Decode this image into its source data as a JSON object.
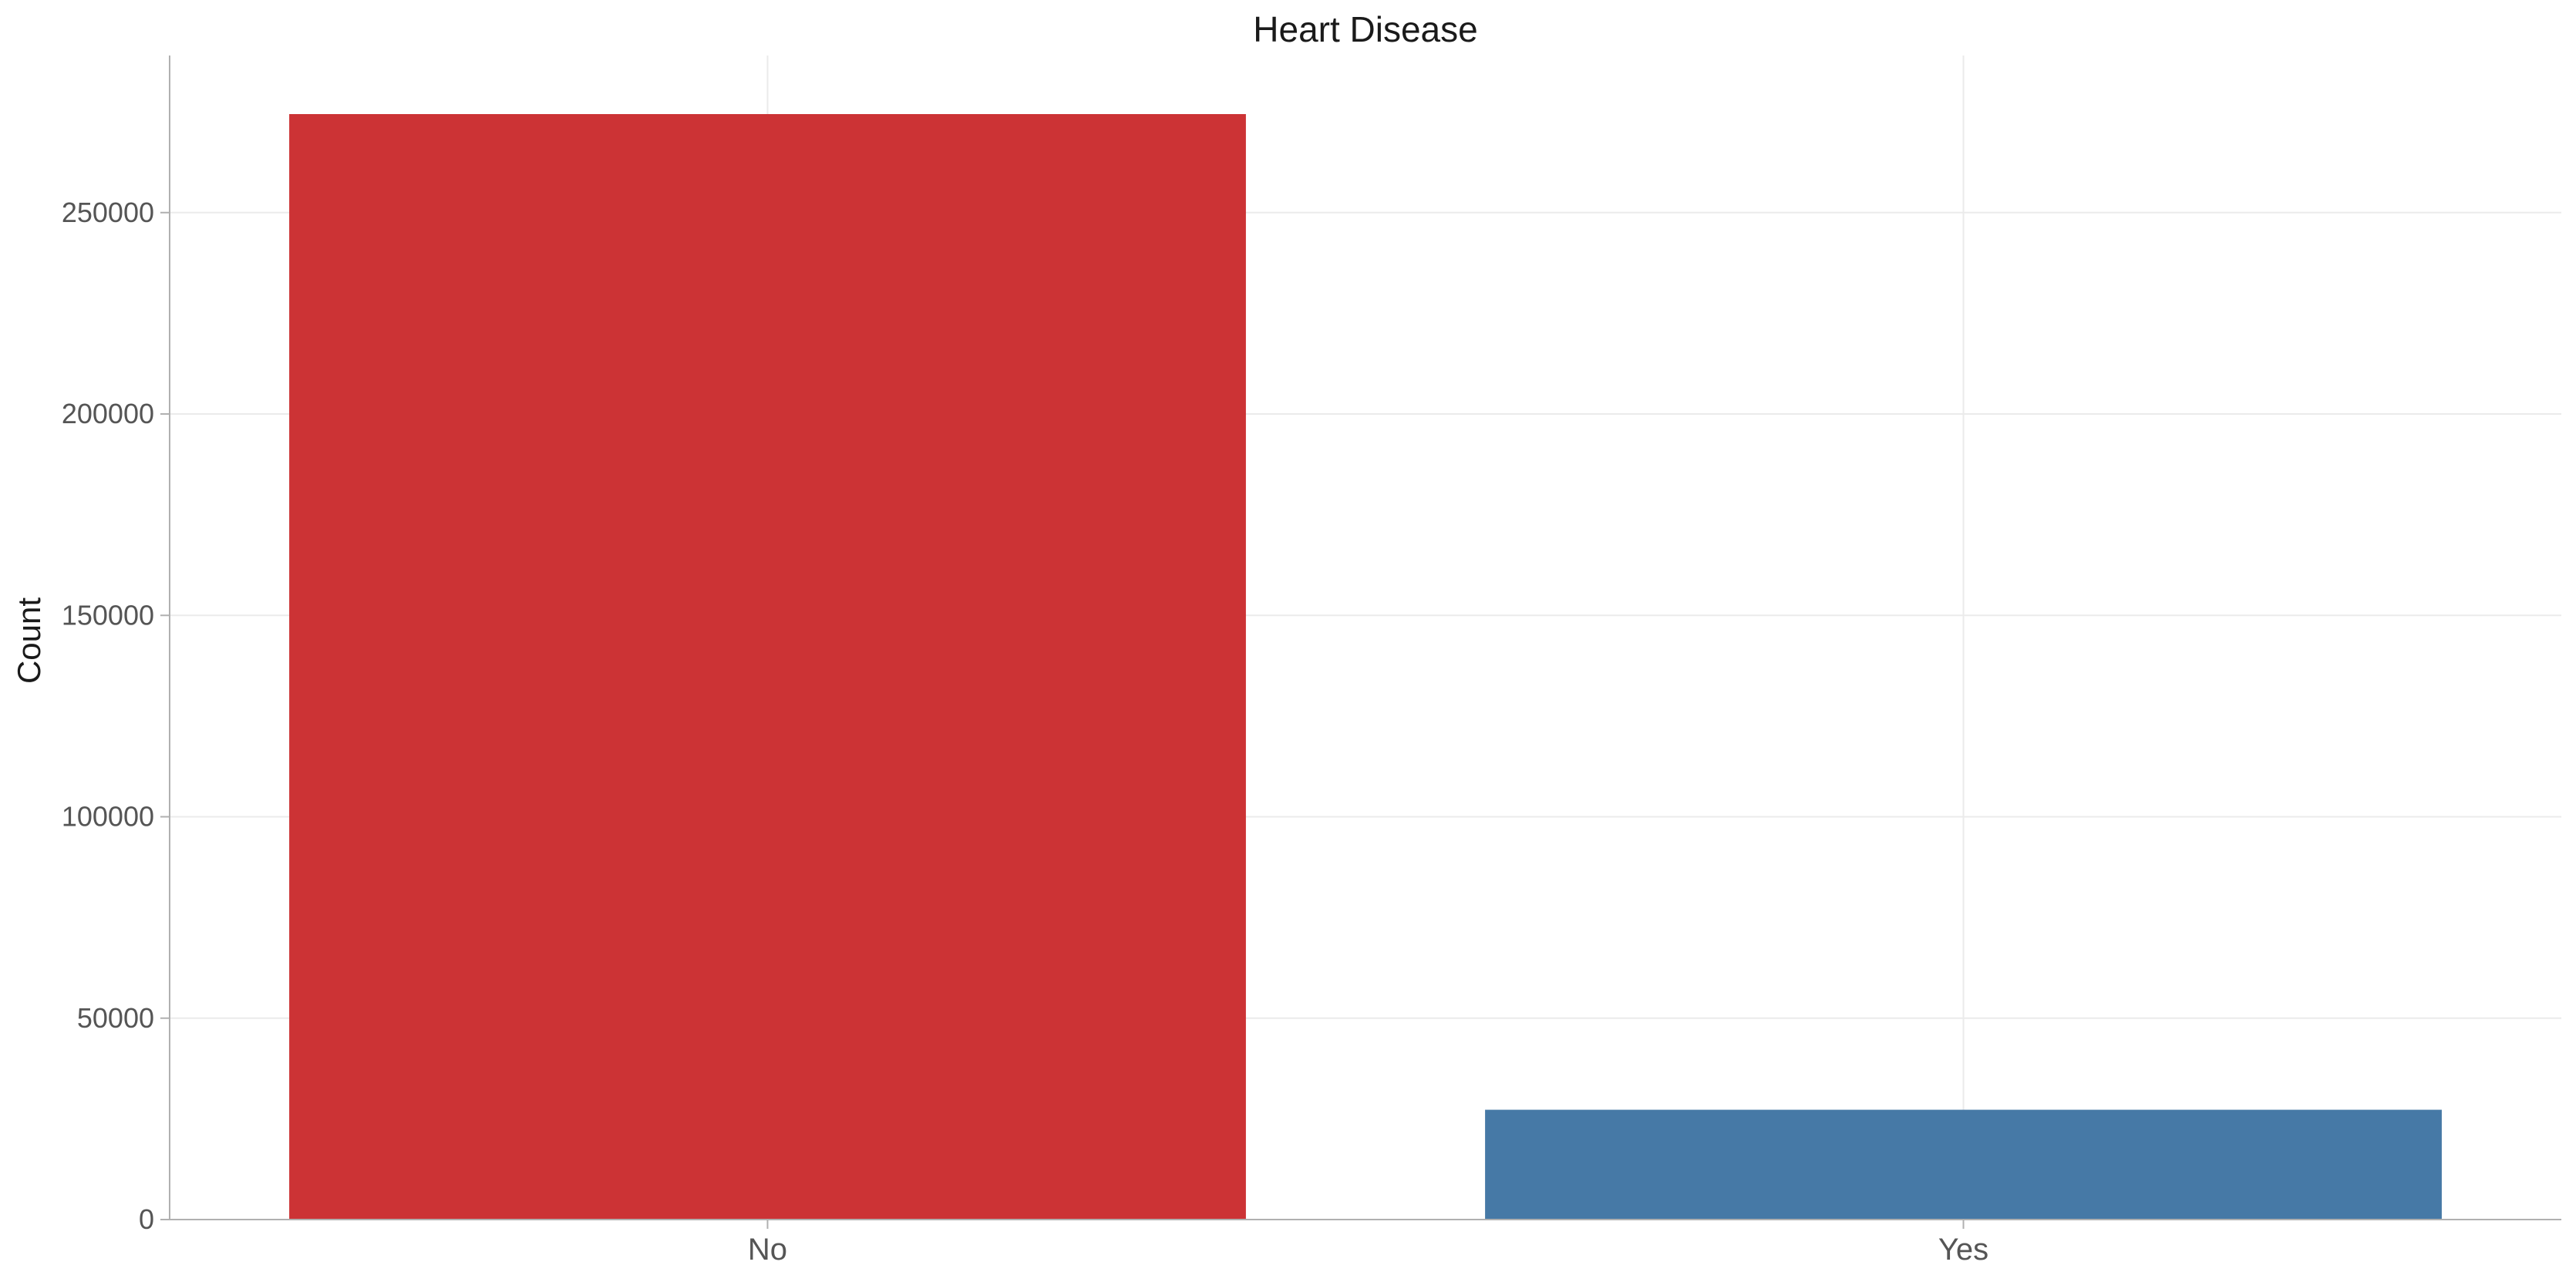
{
  "chart_data": {
    "type": "bar",
    "title": "Heart Disease",
    "xlabel": "",
    "ylabel": "Count",
    "categories": [
      "No",
      "Yes"
    ],
    "values": [
      274456,
      27261
    ],
    "colors": [
      "#cc3335",
      "#4679a6"
    ],
    "ylim": [
      0,
      289000
    ],
    "yticks": [
      0,
      50000,
      100000,
      150000,
      200000,
      250000
    ],
    "ytick_labels": [
      "0",
      "50000",
      "100000",
      "150000",
      "200000",
      "250000"
    ],
    "grid": true,
    "legend": "none"
  }
}
